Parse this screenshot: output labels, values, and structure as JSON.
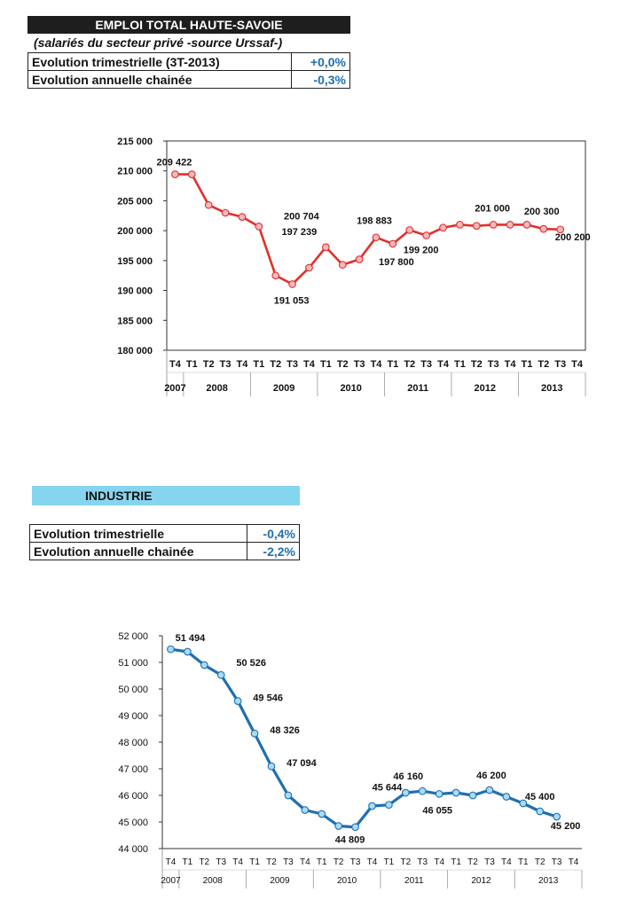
{
  "header1": {
    "title": "EMPLOI TOTAL HAUTE-SAVOIE",
    "subtitle": "(salariés du secteur privé -source Urssaf-)",
    "rows": [
      {
        "label": "Evolution trimestrielle (3T-2013)",
        "value": "+0,0%"
      },
      {
        "label": "Evolution annuelle chainée",
        "value": "-0,3%"
      }
    ]
  },
  "header2": {
    "title": "INDUSTRIE",
    "rows": [
      {
        "label": "Evolution trimestrielle",
        "value": "-0,4%"
      },
      {
        "label": "Evolution annuelle chainée",
        "value": "-2,2%"
      }
    ]
  },
  "chart_data": [
    {
      "type": "line",
      "color": "#e0302a",
      "marker_fill": "#f4b8c0",
      "categories": [
        "T4",
        "T1",
        "T2",
        "T3",
        "T4",
        "T1",
        "T2",
        "T3",
        "T4",
        "T1",
        "T2",
        "T3",
        "T4",
        "T1",
        "T2",
        "T3",
        "T4",
        "T1",
        "T2",
        "T3",
        "T4",
        "T1",
        "T2",
        "T3",
        "T4"
      ],
      "years": [
        {
          "label": "2007",
          "from": 0,
          "to": 0
        },
        {
          "label": "2008",
          "from": 1,
          "to": 4
        },
        {
          "label": "2009",
          "from": 5,
          "to": 8
        },
        {
          "label": "2010",
          "from": 9,
          "to": 12
        },
        {
          "label": "2011",
          "from": 13,
          "to": 16
        },
        {
          "label": "2012",
          "from": 17,
          "to": 20
        },
        {
          "label": "2013",
          "from": 21,
          "to": 24
        }
      ],
      "values": [
        209422,
        209422,
        204300,
        203000,
        202300,
        200704,
        192500,
        191053,
        193800,
        197239,
        194300,
        195200,
        198883,
        197800,
        200100,
        199200,
        200500,
        201000,
        200800,
        201000,
        201000,
        201000,
        200300,
        200200,
        null
      ],
      "data_labels": [
        {
          "index": 0,
          "text": "209 422"
        },
        {
          "index": 5,
          "text": "200 704"
        },
        {
          "index": 7,
          "text": "191 053"
        },
        {
          "index": 9,
          "text": "197 239"
        },
        {
          "index": 12,
          "text": "198 883"
        },
        {
          "index": 13,
          "text": "197 800"
        },
        {
          "index": 15,
          "text": "199 200"
        },
        {
          "index": 19,
          "text": "201 000"
        },
        {
          "index": 22,
          "text": "200 300"
        },
        {
          "index": 23,
          "text": "200 200"
        }
      ],
      "ylim": [
        180000,
        215000
      ],
      "yticks": [
        "180 000",
        "185 000",
        "190 000",
        "195 000",
        "200 000",
        "205 000",
        "210 000",
        "215 000"
      ],
      "grid": false
    },
    {
      "type": "line",
      "color": "#1f6fb2",
      "marker_fill": "#a9dcf5",
      "categories": [
        "T4",
        "T1",
        "T2",
        "T3",
        "T4",
        "T1",
        "T2",
        "T3",
        "T4",
        "T1",
        "T2",
        "T3",
        "T4",
        "T1",
        "T2",
        "T3",
        "T4",
        "T1",
        "T2",
        "T3",
        "T4",
        "T1",
        "T2",
        "T3",
        "T4"
      ],
      "years": [
        {
          "label": "2007",
          "from": 0,
          "to": 0
        },
        {
          "label": "2008",
          "from": 1,
          "to": 4
        },
        {
          "label": "2009",
          "from": 5,
          "to": 8
        },
        {
          "label": "2010",
          "from": 9,
          "to": 12
        },
        {
          "label": "2011",
          "from": 13,
          "to": 16
        },
        {
          "label": "2012",
          "from": 17,
          "to": 20
        },
        {
          "label": "2013",
          "from": 21,
          "to": 24
        }
      ],
      "values": [
        51494,
        51400,
        50900,
        50526,
        49546,
        48326,
        47094,
        46000,
        45450,
        45300,
        44850,
        44809,
        45600,
        45644,
        46100,
        46160,
        46055,
        46100,
        46000,
        46200,
        45950,
        45700,
        45400,
        45200,
        null
      ],
      "data_labels": [
        {
          "index": 0,
          "text": "51 494"
        },
        {
          "index": 3,
          "text": "50 526"
        },
        {
          "index": 4,
          "text": "49 546"
        },
        {
          "index": 5,
          "text": "48 326"
        },
        {
          "index": 6,
          "text": "47 094"
        },
        {
          "index": 11,
          "text": "44 809"
        },
        {
          "index": 13,
          "text": "45 644"
        },
        {
          "index": 15,
          "text": "46 160"
        },
        {
          "index": 16,
          "text": "46 055"
        },
        {
          "index": 19,
          "text": "46 200"
        },
        {
          "index": 22,
          "text": "45 400"
        },
        {
          "index": 23,
          "text": "45 200"
        }
      ],
      "ylim": [
        44000,
        52000
      ],
      "yticks": [
        "44 000",
        "45 000",
        "46 000",
        "47 000",
        "48 000",
        "49 000",
        "50 000",
        "51 000",
        "52 000"
      ],
      "grid": false
    }
  ]
}
